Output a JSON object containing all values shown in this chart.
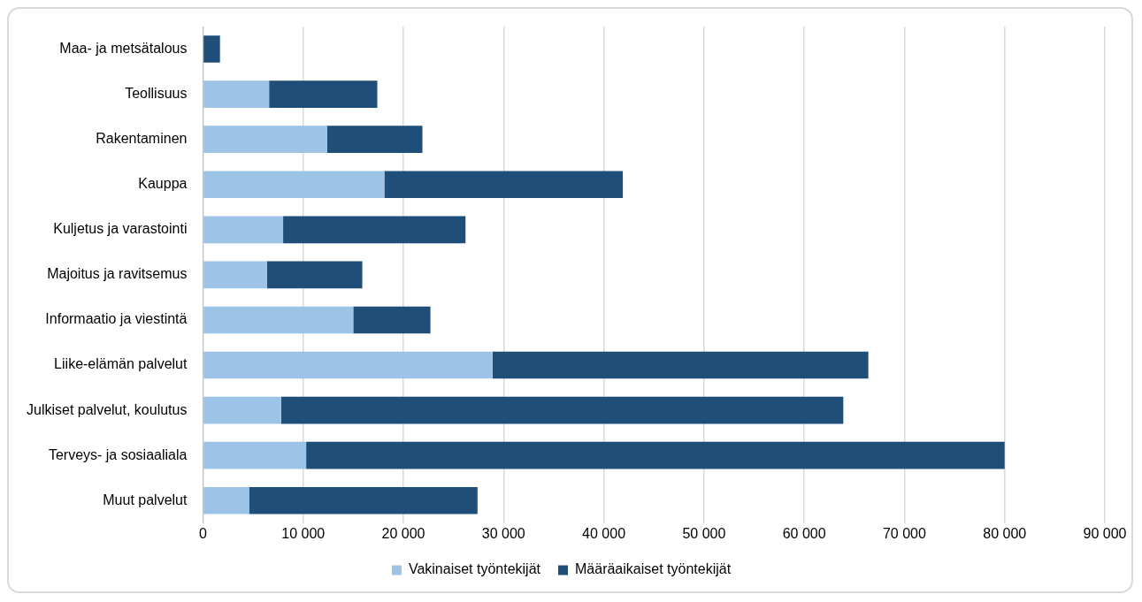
{
  "chart_data": {
    "type": "bar",
    "orientation": "horizontal",
    "stacked": true,
    "categories": [
      "Maa- ja metsätalous",
      "Teollisuus",
      "Rakentaminen",
      "Kauppa",
      "Kuljetus ja varastointi",
      "Majoitus ja ravitsemus",
      "Informaatio ja viestintä",
      "Liike-elämän palvelut",
      "Julkiset palvelut, koulutus",
      "Terveys- ja sosiaaliala",
      "Muut palvelut"
    ],
    "series": [
      {
        "name": "Vakinaiset työntekijät",
        "color": "#9dc3e6",
        "values": [
          0,
          6600,
          12400,
          18100,
          8000,
          6400,
          15000,
          28900,
          7800,
          10300,
          4600
        ]
      },
      {
        "name": "Määräaikaiset työntekijät",
        "color": "#1f4e79",
        "values": [
          1700,
          10800,
          9500,
          23800,
          18200,
          9500,
          7700,
          37500,
          56100,
          69700,
          22800
        ]
      }
    ],
    "xlim": [
      0,
      90000
    ],
    "xticks": [
      0,
      {
        "value": 10000,
        "label": "10 000"
      },
      {
        "value": 20000,
        "label": "20 000"
      },
      {
        "value": 30000,
        "label": "30 000"
      },
      {
        "value": 40000,
        "label": "40 000"
      },
      {
        "value": 50000,
        "label": "50 000"
      },
      {
        "value": 60000,
        "label": "60 000"
      },
      {
        "value": 70000,
        "label": "70 000"
      },
      {
        "value": 80000,
        "label": "80 000"
      },
      {
        "value": 90000,
        "label": "90 000"
      }
    ],
    "grid": "x",
    "legend": "bottom"
  }
}
